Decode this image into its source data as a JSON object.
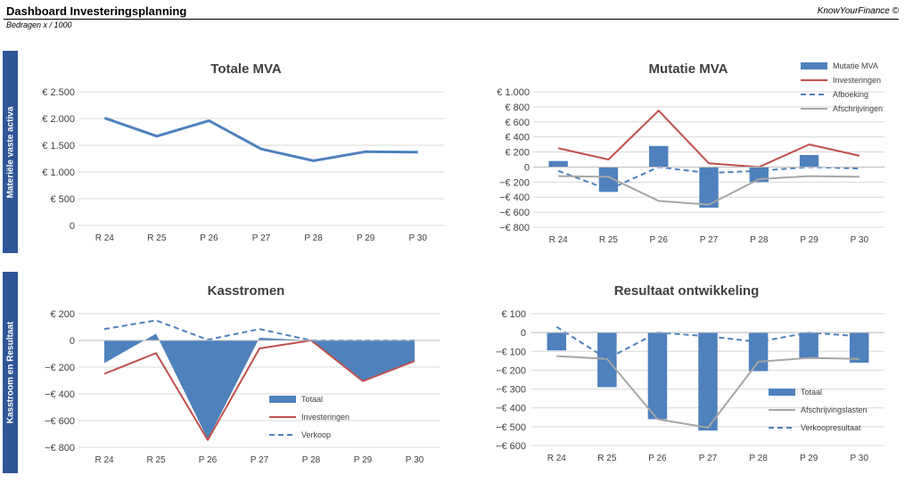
{
  "header": {
    "title": "Dashboard Investeringsplanning",
    "brand": "KnowYourFinance ©",
    "subtitle": "Bedragen x / 1000"
  },
  "side_labels": {
    "top": "Materiële vaste activa",
    "bottom": "Kasstroom en Resultaat"
  },
  "chart_data": [
    {
      "id": "totale-mva",
      "type": "line",
      "title": "Totale MVA",
      "categories": [
        "R 24",
        "R 25",
        "P 26",
        "P 27",
        "P 28",
        "P 29",
        "P 30"
      ],
      "yticks": [
        0,
        500,
        1000,
        1500,
        2000,
        2500
      ],
      "ytick_labels": [
        "0",
        "€ 500",
        "€ 1.000",
        "€ 1.500",
        "€ 2.000",
        "€ 2.500"
      ],
      "ylim": [
        0,
        2500
      ],
      "grid": true,
      "series": [
        {
          "type": "line",
          "style": "solid",
          "color": "#4f81bd",
          "values": [
            2010,
            1670,
            1960,
            1430,
            1210,
            1380,
            1370
          ]
        }
      ]
    },
    {
      "id": "mutatie-mva",
      "type": "bar",
      "title": "Mutatie MVA",
      "categories": [
        "R 24",
        "R 25",
        "P 26",
        "P 27",
        "P 28",
        "P 29",
        "P 30"
      ],
      "yticks": [
        -800,
        -600,
        -400,
        -200,
        0,
        200,
        400,
        600,
        800,
        1000
      ],
      "ytick_labels": [
        "−€ 800",
        "−€ 600",
        "−€ 400",
        "−€ 200",
        "0",
        "€ 200",
        "€ 400",
        "€ 600",
        "€ 800",
        "€ 1.000"
      ],
      "ylim": [
        -800,
        1000
      ],
      "grid": true,
      "legend": "top-right",
      "series": [
        {
          "name": "Mutatie MVA",
          "type": "bar",
          "color": "#4f81bd",
          "values": [
            80,
            -330,
            280,
            -540,
            -200,
            160,
            0
          ]
        },
        {
          "name": "Investeringen",
          "type": "line",
          "style": "solid",
          "color": "#c0504d",
          "values": [
            250,
            100,
            750,
            50,
            0,
            300,
            150
          ]
        },
        {
          "name": "Afboeking",
          "type": "line",
          "style": "dashed",
          "color": "#4f81bd",
          "values": [
            -50,
            -300,
            0,
            -80,
            -50,
            0,
            -20
          ]
        },
        {
          "name": "Afschrijvingen",
          "type": "line",
          "style": "solid",
          "color": "#a6a6a6",
          "values": [
            -120,
            -130,
            -450,
            -500,
            -160,
            -120,
            -130
          ]
        }
      ]
    },
    {
      "id": "kasstromen",
      "type": "area",
      "title": "Kasstromen",
      "categories": [
        "R 24",
        "R 25",
        "P 26",
        "P 27",
        "P 28",
        "P 29",
        "P 30"
      ],
      "yticks": [
        -800,
        -600,
        -400,
        -200,
        0,
        200
      ],
      "ytick_labels": [
        "−€ 800",
        "−€ 600",
        "−€ 400",
        "−€ 200",
        "0",
        "€ 200"
      ],
      "ylim": [
        -800,
        200
      ],
      "grid": true,
      "legend": "bottom-center",
      "series": [
        {
          "name": "Totaal",
          "type": "area",
          "color": "#4f81bd",
          "values": [
            -170,
            50,
            -740,
            20,
            0,
            -300,
            -150
          ]
        },
        {
          "name": "Investeringen",
          "type": "line",
          "style": "solid",
          "color": "#c0504d",
          "values": [
            -250,
            -95,
            -745,
            -60,
            0,
            -305,
            -155
          ]
        },
        {
          "name": "Verkoop",
          "type": "line",
          "style": "dashed",
          "color": "#4f81bd",
          "values": [
            85,
            150,
            5,
            85,
            0,
            0,
            0
          ]
        }
      ]
    },
    {
      "id": "resultaat-ontwikkeling",
      "type": "bar",
      "title": "Resultaat ontwikkeling",
      "categories": [
        "R 24",
        "R 25",
        "P 26",
        "P 27",
        "P 28",
        "P 29",
        "P 30"
      ],
      "yticks": [
        -600,
        -500,
        -400,
        -300,
        -200,
        -100,
        0,
        100
      ],
      "ytick_labels": [
        "−€ 600",
        "−€ 500",
        "−€ 400",
        "−€ 300",
        "−€ 200",
        "−€ 100",
        "0",
        "€ 100"
      ],
      "ylim": [
        -600,
        100
      ],
      "grid": true,
      "legend": "bottom-right",
      "series": [
        {
          "name": "Totaal",
          "type": "bar",
          "color": "#4f81bd",
          "values": [
            -95,
            -290,
            -460,
            -520,
            -205,
            -140,
            -160
          ]
        },
        {
          "name": "Afschrijvingslasten",
          "type": "line",
          "style": "solid",
          "color": "#a6a6a6",
          "values": [
            -125,
            -140,
            -460,
            -505,
            -155,
            -135,
            -140
          ]
        },
        {
          "name": "Verkoopresultaat",
          "type": "line",
          "style": "dashed",
          "color": "#4f81bd",
          "values": [
            30,
            -140,
            0,
            -20,
            -50,
            0,
            -20
          ]
        }
      ]
    }
  ]
}
